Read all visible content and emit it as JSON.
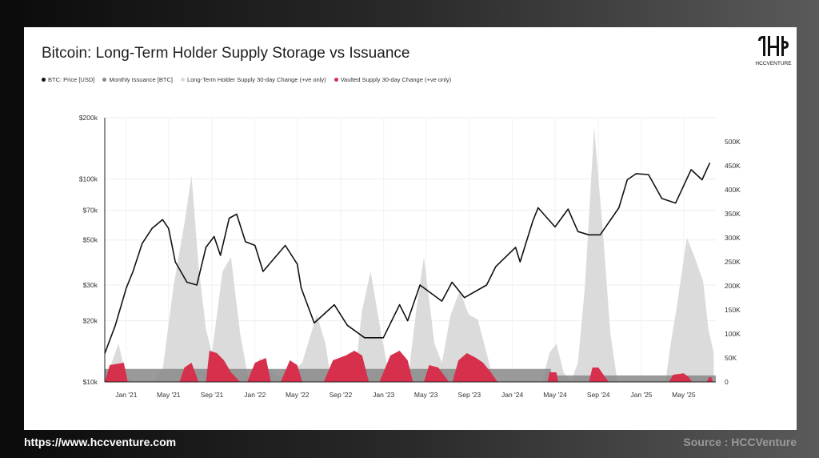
{
  "header": {
    "title": "Bitcoin: Long-Term Holder Supply Storage vs Issuance"
  },
  "logo": {
    "text": "HCCVENTURE"
  },
  "footer": {
    "url": "https://www.hccventure.com",
    "source": "Source : HCCVenture"
  },
  "colors": {
    "price": "#111111",
    "issuance": "#888888",
    "lth": "#d9d9d9",
    "vaulted": "#d6304c"
  },
  "chart_data": {
    "type": "area",
    "title": "Bitcoin: Long-Term Holder Supply Storage vs Issuance",
    "legend": [
      {
        "label": "BTC: Price [USD]",
        "color": "#111111"
      },
      {
        "label": "Monthly Issuance [BTC]",
        "color": "#888888"
      },
      {
        "label": "Long-Term Holder Supply 30-day Change (+ve only)",
        "color": "#d9d9d9"
      },
      {
        "label": "Vaulted Supply 30-day Change (+ve only)",
        "color": "#d6304c"
      }
    ],
    "legend_position": "top-left",
    "x_range": [
      "2020-11-01",
      "2025-07-31"
    ],
    "x_ticks": [
      "Jan '21",
      "May '21",
      "Sep '21",
      "Jan '22",
      "May '22",
      "Sep '22",
      "Jan '23",
      "May '23",
      "Sep '23",
      "Jan '24",
      "May '24",
      "Sep '24",
      "Jan '25",
      "May '25"
    ],
    "y_left": {
      "scale": "log",
      "range": [
        10000,
        200000
      ],
      "ticks": [
        200000,
        100000,
        70000,
        50000,
        30000,
        20000,
        10000
      ],
      "tick_labels": [
        "$200k",
        "$100k",
        "$70k",
        "$50k",
        "$30k",
        "$20k",
        "$10k"
      ]
    },
    "y_right": {
      "scale": "linear",
      "range": [
        0,
        550000
      ],
      "ticks": [
        0,
        50000,
        100000,
        150000,
        200000,
        250000,
        300000,
        350000,
        400000,
        450000,
        500000
      ],
      "tick_labels": [
        "0",
        "50K",
        "100K",
        "150K",
        "200K",
        "250K",
        "300K",
        "350K",
        "400K",
        "450K",
        "500K"
      ]
    },
    "grid": true,
    "series": [
      {
        "name": "BTC: Price [USD]",
        "type": "line",
        "axis": "left",
        "points": [
          [
            "2020-11-01",
            13800
          ],
          [
            "2020-12-01",
            19000
          ],
          [
            "2021-01-01",
            29000
          ],
          [
            "2021-01-20",
            35000
          ],
          [
            "2021-02-15",
            48000
          ],
          [
            "2021-03-15",
            57000
          ],
          [
            "2021-04-14",
            63000
          ],
          [
            "2021-05-01",
            57000
          ],
          [
            "2021-05-20",
            39000
          ],
          [
            "2021-06-22",
            31000
          ],
          [
            "2021-07-20",
            30000
          ],
          [
            "2021-08-15",
            46000
          ],
          [
            "2021-09-07",
            52000
          ],
          [
            "2021-09-25",
            42000
          ],
          [
            "2021-10-20",
            64000
          ],
          [
            "2021-11-10",
            67000
          ],
          [
            "2021-12-05",
            49000
          ],
          [
            "2022-01-01",
            47000
          ],
          [
            "2022-01-24",
            35000
          ],
          [
            "2022-03-28",
            47000
          ],
          [
            "2022-05-01",
            38000
          ],
          [
            "2022-05-12",
            29000
          ],
          [
            "2022-06-18",
            19500
          ],
          [
            "2022-08-14",
            24000
          ],
          [
            "2022-09-20",
            19000
          ],
          [
            "2022-11-08",
            16500
          ],
          [
            "2022-12-31",
            16500
          ],
          [
            "2023-02-15",
            24000
          ],
          [
            "2023-03-10",
            20000
          ],
          [
            "2023-04-14",
            30000
          ],
          [
            "2023-06-15",
            25000
          ],
          [
            "2023-07-14",
            31000
          ],
          [
            "2023-08-18",
            26000
          ],
          [
            "2023-10-20",
            30000
          ],
          [
            "2023-11-15",
            37000
          ],
          [
            "2024-01-10",
            46000
          ],
          [
            "2024-01-23",
            39000
          ],
          [
            "2024-02-28",
            62000
          ],
          [
            "2024-03-14",
            72000
          ],
          [
            "2024-05-01",
            58000
          ],
          [
            "2024-06-07",
            71000
          ],
          [
            "2024-07-05",
            55000
          ],
          [
            "2024-08-05",
            53000
          ],
          [
            "2024-09-06",
            53000
          ],
          [
            "2024-10-29",
            72000
          ],
          [
            "2024-11-22",
            99000
          ],
          [
            "2024-12-17",
            106000
          ],
          [
            "2025-01-21",
            105000
          ],
          [
            "2025-02-28",
            80000
          ],
          [
            "2025-04-08",
            76000
          ],
          [
            "2025-05-22",
            111000
          ],
          [
            "2025-06-22",
            99000
          ],
          [
            "2025-07-14",
            120000
          ]
        ]
      },
      {
        "name": "Monthly Issuance [BTC]",
        "type": "area",
        "axis": "right",
        "points": [
          [
            "2020-11-01",
            27000
          ],
          [
            "2024-04-19",
            27000
          ],
          [
            "2024-04-20",
            13500
          ],
          [
            "2025-07-31",
            13500
          ]
        ]
      },
      {
        "name": "Long-Term Holder Supply 30-day Change (+ve only)",
        "type": "area",
        "axis": "right",
        "points": [
          [
            "2020-11-01",
            0
          ],
          [
            "2020-12-10",
            80000
          ],
          [
            "2021-01-01",
            10000
          ],
          [
            "2021-01-25",
            0
          ],
          [
            "2021-03-20",
            0
          ],
          [
            "2021-04-15",
            30000
          ],
          [
            "2021-05-15",
            200000
          ],
          [
            "2021-06-15",
            330000
          ],
          [
            "2021-07-05",
            430000
          ],
          [
            "2021-07-25",
            240000
          ],
          [
            "2021-08-15",
            110000
          ],
          [
            "2021-09-01",
            60000
          ],
          [
            "2021-10-01",
            230000
          ],
          [
            "2021-10-25",
            260000
          ],
          [
            "2021-11-20",
            100000
          ],
          [
            "2021-12-15",
            0
          ],
          [
            "2022-01-15",
            50000
          ],
          [
            "2022-02-15",
            20000
          ],
          [
            "2022-03-15",
            10000
          ],
          [
            "2022-04-15",
            20000
          ],
          [
            "2022-05-15",
            40000
          ],
          [
            "2022-06-25",
            140000
          ],
          [
            "2022-07-20",
            80000
          ],
          [
            "2022-08-01",
            20000
          ],
          [
            "2022-09-15",
            10000
          ],
          [
            "2022-10-15",
            40000
          ],
          [
            "2022-11-01",
            150000
          ],
          [
            "2022-11-25",
            230000
          ],
          [
            "2022-12-25",
            100000
          ],
          [
            "2023-01-20",
            0
          ],
          [
            "2023-03-15",
            30000
          ],
          [
            "2023-04-05",
            160000
          ],
          [
            "2023-04-25",
            260000
          ],
          [
            "2023-05-25",
            80000
          ],
          [
            "2023-06-15",
            40000
          ],
          [
            "2023-07-10",
            140000
          ],
          [
            "2023-08-05",
            190000
          ],
          [
            "2023-08-30",
            140000
          ],
          [
            "2023-09-25",
            130000
          ],
          [
            "2023-10-20",
            60000
          ],
          [
            "2023-11-10",
            0
          ],
          [
            "2024-03-25",
            0
          ],
          [
            "2024-04-15",
            60000
          ],
          [
            "2024-05-05",
            80000
          ],
          [
            "2024-05-25",
            20000
          ],
          [
            "2024-06-15",
            0
          ],
          [
            "2024-07-05",
            40000
          ],
          [
            "2024-07-25",
            200000
          ],
          [
            "2024-08-20",
            530000
          ],
          [
            "2024-09-15",
            300000
          ],
          [
            "2024-10-05",
            100000
          ],
          [
            "2024-10-25",
            0
          ],
          [
            "2025-03-10",
            0
          ],
          [
            "2025-03-25",
            80000
          ],
          [
            "2025-04-10",
            150000
          ],
          [
            "2025-05-10",
            300000
          ],
          [
            "2025-06-01",
            260000
          ],
          [
            "2025-06-25",
            210000
          ],
          [
            "2025-07-10",
            110000
          ],
          [
            "2025-07-25",
            60000
          ]
        ]
      },
      {
        "name": "Vaulted Supply 30-day Change (+ve only)",
        "type": "area",
        "axis": "right",
        "points": [
          [
            "2020-11-01",
            0
          ],
          [
            "2020-11-15",
            35000
          ],
          [
            "2020-12-25",
            40000
          ],
          [
            "2021-01-05",
            0
          ],
          [
            "2021-06-01",
            0
          ],
          [
            "2021-06-15",
            30000
          ],
          [
            "2021-07-05",
            40000
          ],
          [
            "2021-07-25",
            0
          ],
          [
            "2021-08-15",
            0
          ],
          [
            "2021-08-25",
            65000
          ],
          [
            "2021-09-15",
            60000
          ],
          [
            "2021-10-05",
            45000
          ],
          [
            "2021-10-25",
            20000
          ],
          [
            "2021-11-20",
            0
          ],
          [
            "2021-12-10",
            0
          ],
          [
            "2022-01-01",
            40000
          ],
          [
            "2022-02-01",
            50000
          ],
          [
            "2022-02-15",
            0
          ],
          [
            "2022-03-15",
            0
          ],
          [
            "2022-04-10",
            45000
          ],
          [
            "2022-05-01",
            35000
          ],
          [
            "2022-05-15",
            0
          ],
          [
            "2022-07-15",
            0
          ],
          [
            "2022-08-10",
            45000
          ],
          [
            "2022-09-15",
            55000
          ],
          [
            "2022-10-10",
            65000
          ],
          [
            "2022-11-01",
            55000
          ],
          [
            "2022-11-20",
            0
          ],
          [
            "2022-12-20",
            0
          ],
          [
            "2023-01-20",
            55000
          ],
          [
            "2023-02-15",
            65000
          ],
          [
            "2023-03-10",
            45000
          ],
          [
            "2023-03-25",
            0
          ],
          [
            "2023-04-25",
            0
          ],
          [
            "2023-05-10",
            35000
          ],
          [
            "2023-06-05",
            30000
          ],
          [
            "2023-06-25",
            10000
          ],
          [
            "2023-07-05",
            0
          ],
          [
            "2023-07-15",
            0
          ],
          [
            "2023-08-01",
            45000
          ],
          [
            "2023-08-25",
            60000
          ],
          [
            "2023-09-20",
            50000
          ],
          [
            "2023-10-10",
            40000
          ],
          [
            "2023-11-01",
            20000
          ],
          [
            "2023-11-20",
            0
          ],
          [
            "2024-04-10",
            0
          ],
          [
            "2024-04-15",
            20000
          ],
          [
            "2024-05-05",
            20000
          ],
          [
            "2024-05-10",
            0
          ],
          [
            "2024-08-05",
            0
          ],
          [
            "2024-08-15",
            30000
          ],
          [
            "2024-09-01",
            30000
          ],
          [
            "2024-09-20",
            10000
          ],
          [
            "2024-10-01",
            0
          ],
          [
            "2025-03-20",
            0
          ],
          [
            "2025-04-01",
            15000
          ],
          [
            "2025-05-01",
            18000
          ],
          [
            "2025-05-15",
            10000
          ],
          [
            "2025-05-25",
            0
          ],
          [
            "2025-07-05",
            0
          ],
          [
            "2025-07-12",
            10000
          ],
          [
            "2025-07-18",
            10000
          ],
          [
            "2025-07-22",
            0
          ]
        ]
      }
    ]
  }
}
